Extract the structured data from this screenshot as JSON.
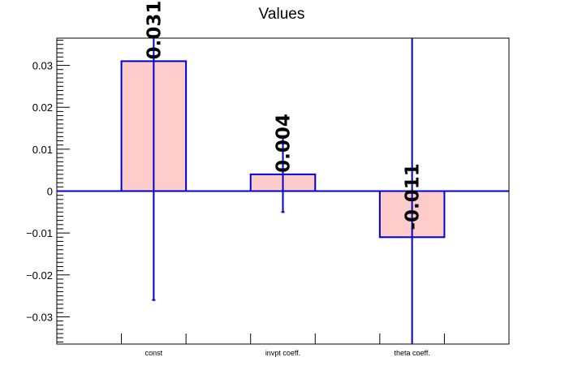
{
  "chart_data": {
    "type": "bar",
    "title": "Values",
    "xlabel": "",
    "ylabel": "",
    "categories": [
      "const",
      "invpt coeff.",
      "theta coeff."
    ],
    "values": [
      0.031,
      0.004,
      -0.011
    ],
    "value_labels": [
      "0.031",
      "0.004",
      "-0.011"
    ],
    "errors": [
      0.057,
      0.009,
      0.07
    ],
    "ylim": [
      -0.0365,
      0.0365
    ],
    "yticks": [
      -0.03,
      -0.02,
      -0.01,
      0,
      0.01,
      0.02,
      0.03
    ],
    "ytick_labels": [
      "−0.03",
      "−0.02",
      "−0.01",
      "0",
      "0.01",
      "0.02",
      "0.03"
    ],
    "grid": false,
    "legend": "none",
    "colors": {
      "bar_fill": "#ffcccc",
      "bar_edge": "#0000cc",
      "error_bar": "#0000cc",
      "axis": "#000000"
    }
  }
}
